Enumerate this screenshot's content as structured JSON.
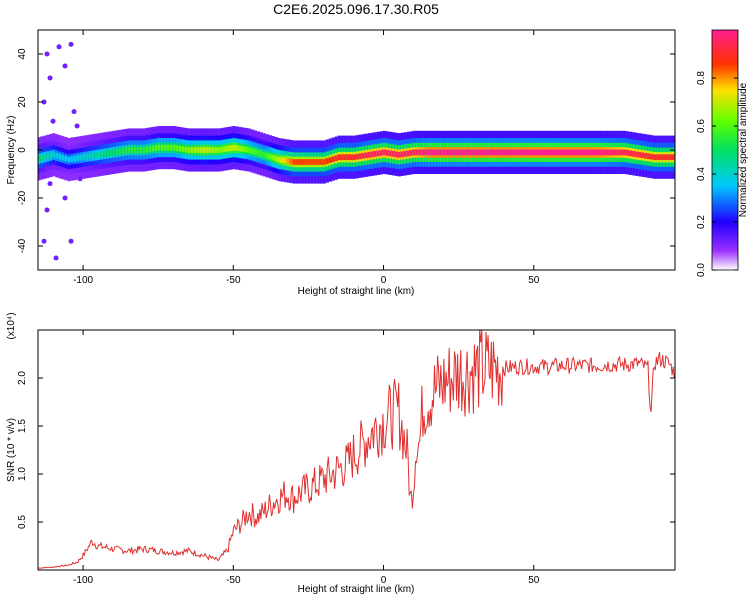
{
  "chart_data": [
    {
      "type": "heatmap",
      "title": "C2E6.2025.096.17.30.R05",
      "xlabel": "Height of straight line (km)",
      "ylabel": "Frequency (Hz)",
      "xlim": [
        -115,
        97
      ],
      "ylim": [
        -50,
        50
      ],
      "xticks": [
        -100,
        -50,
        0,
        50
      ],
      "yticks": [
        -40,
        -20,
        0,
        20,
        40
      ],
      "colorbar": {
        "label": "Normalized spectral amplitude",
        "range": [
          0,
          1
        ],
        "ticks": [
          0.0,
          0.2,
          0.4,
          0.6,
          0.8
        ],
        "colormap": "rainbow (violet-blue-cyan-green-yellow-red-magenta)"
      },
      "ridge": {
        "x": [
          -113,
          -110,
          -105,
          -100,
          -95,
          -90,
          -85,
          -80,
          -75,
          -70,
          -65,
          -60,
          -55,
          -50,
          -45,
          -40,
          -35,
          -30,
          -25,
          -20,
          -15,
          -10,
          -5,
          0,
          5,
          10,
          15,
          20,
          30,
          40,
          50,
          60,
          70,
          80,
          90,
          95
        ],
        "frequency_hz": [
          -3,
          -2,
          -4,
          -3,
          -2,
          -1,
          0,
          0,
          1,
          1,
          0,
          0,
          0,
          1,
          0,
          -2,
          -4,
          -5,
          -5,
          -5,
          -3,
          -3,
          -2,
          -1,
          -2,
          -1,
          -1,
          -1,
          -1,
          -1,
          -1,
          -1,
          -1,
          -1,
          -3,
          -3
        ],
        "amplitude": [
          0.45,
          0.4,
          0.35,
          0.4,
          0.45,
          0.5,
          0.55,
          0.55,
          0.6,
          0.6,
          0.65,
          0.7,
          0.65,
          0.7,
          0.6,
          0.55,
          0.7,
          0.85,
          0.85,
          0.85,
          0.9,
          0.9,
          0.95,
          0.95,
          0.95,
          0.95,
          1.0,
          1.0,
          1.0,
          1.0,
          1.0,
          1.0,
          1.0,
          0.95,
          0.9,
          0.9
        ]
      }
    },
    {
      "type": "line",
      "xlabel": "Height of straight line (km)",
      "ylabel": "SNR (10 * v/v)",
      "multiplier": "(x10⁴)",
      "xlim": [
        -115,
        97
      ],
      "ylim": [
        0,
        2.5
      ],
      "xticks": [
        -100,
        -50,
        0,
        50
      ],
      "yticks": [
        0.5,
        1.0,
        1.5,
        2.0
      ],
      "color": "#e03030",
      "series": [
        {
          "x": [
            -115,
            -110,
            -105,
            -102,
            -100,
            -97,
            -95,
            -90,
            -85,
            -80,
            -75,
            -70,
            -65,
            -60,
            -55,
            -52,
            -50,
            -47,
            -45,
            -42,
            -40,
            -37,
            -35,
            -32,
            -30,
            -28,
            -25,
            -22,
            -20,
            -17,
            -15,
            -12,
            -10,
            -7,
            -5,
            -2,
            0,
            2,
            5,
            8,
            9,
            10,
            11,
            12,
            13,
            15,
            18,
            20,
            25,
            30,
            35,
            40,
            45,
            50,
            55,
            60,
            65,
            70,
            75,
            80,
            85,
            88,
            89,
            90,
            92,
            95,
            97
          ],
          "y": [
            0.02,
            0.03,
            0.05,
            0.08,
            0.15,
            0.3,
            0.25,
            0.22,
            0.2,
            0.22,
            0.2,
            0.18,
            0.2,
            0.15,
            0.1,
            0.2,
            0.4,
            0.5,
            0.6,
            0.55,
            0.6,
            0.7,
            0.75,
            0.8,
            0.75,
            0.8,
            0.85,
            0.9,
            0.95,
            1.0,
            1.05,
            1.1,
            1.2,
            1.3,
            1.4,
            1.5,
            1.55,
            1.6,
            1.65,
            1.2,
            0.7,
            0.9,
            1.4,
            1.3,
            1.7,
            1.8,
            1.9,
            1.95,
            2.05,
            2.08,
            2.1,
            2.1,
            2.12,
            2.12,
            2.12,
            2.13,
            2.13,
            2.13,
            2.14,
            2.14,
            2.15,
            2.1,
            1.6,
            2.15,
            2.2,
            2.15,
            2.05
          ]
        }
      ]
    }
  ]
}
